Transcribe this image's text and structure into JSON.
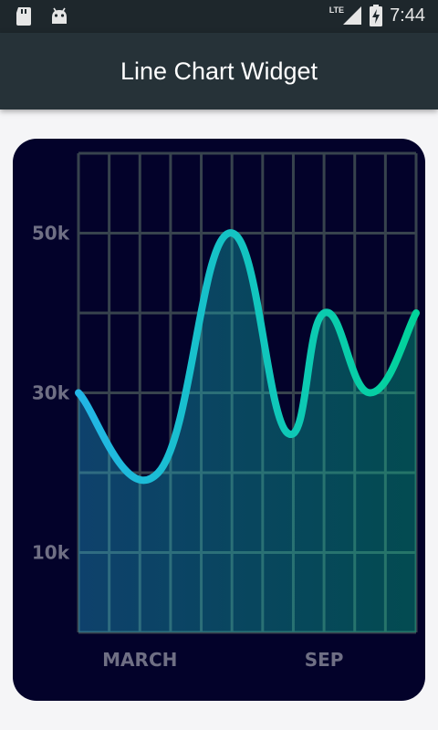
{
  "status_bar": {
    "time": "7:44",
    "network": "LTE",
    "icons": [
      "sd-card-icon",
      "android-icon",
      "signal-icon",
      "battery-icon"
    ]
  },
  "app_bar": {
    "title": "Line Chart Widget"
  },
  "colors": {
    "app_bar": "#263238",
    "status_bar": "#1e272c",
    "card": "#03022a",
    "grid": "#37434d",
    "line_start": "#23b6e6",
    "line_end": "#02d39a",
    "tick_text": "#6f6f84"
  },
  "chart_data": {
    "type": "line",
    "curved": true,
    "area_fill": true,
    "grid": true,
    "xlim": [
      0,
      11
    ],
    "ylim": [
      0,
      6
    ],
    "x_tick_labels": [
      {
        "x": 2,
        "label": "MARCH"
      },
      {
        "x": 8,
        "label": "SEP"
      }
    ],
    "y_tick_labels": [
      {
        "y": 1,
        "label": "10k"
      },
      {
        "y": 3,
        "label": "30k"
      },
      {
        "y": 5,
        "label": "50k"
      }
    ],
    "series": [
      {
        "points": [
          [
            0,
            3
          ],
          [
            2.6,
            2
          ],
          [
            4.9,
            5
          ],
          [
            6.8,
            2.5
          ],
          [
            8,
            4
          ],
          [
            9.5,
            3
          ],
          [
            11,
            4
          ]
        ]
      }
    ]
  }
}
